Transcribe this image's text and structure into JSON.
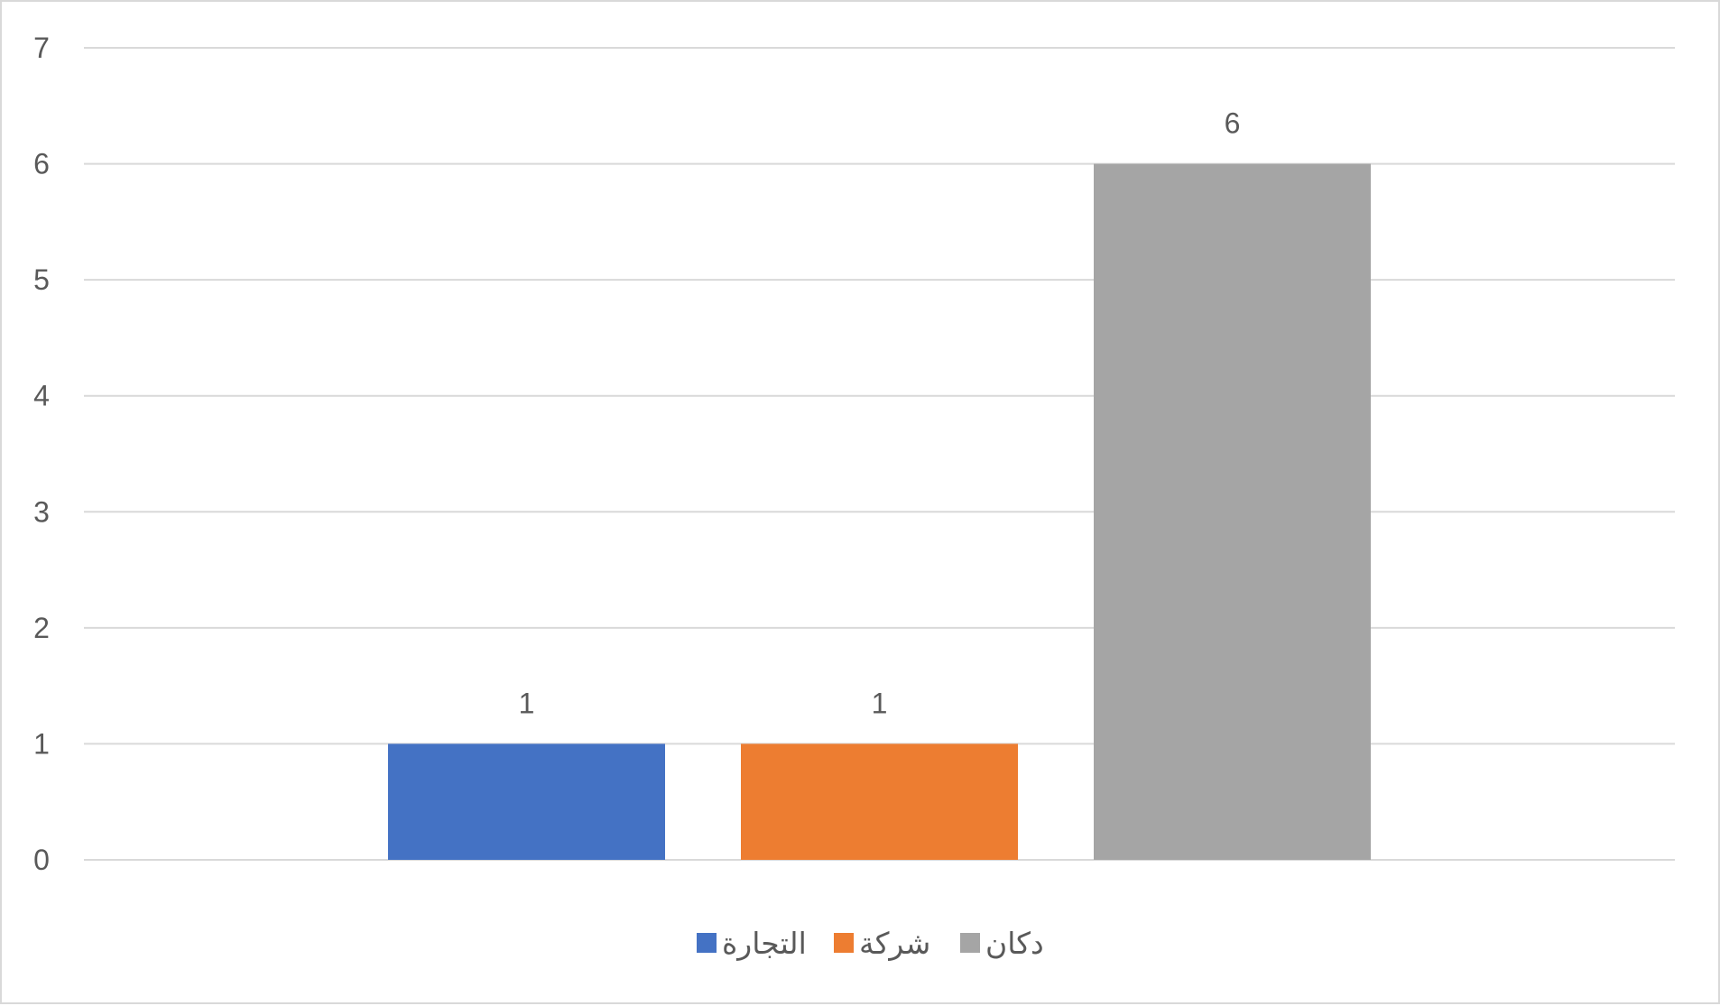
{
  "chart_data": {
    "type": "bar",
    "title": "",
    "xlabel": "",
    "ylabel": "",
    "ylim": [
      0,
      7
    ],
    "yticks": [
      "0",
      "1",
      "2",
      "3",
      "4",
      "5",
      "6",
      "7"
    ],
    "grid": true,
    "legend_placement": "bottom",
    "data_labels": true,
    "series": [
      {
        "name": "التجارة",
        "values": [
          1
        ],
        "color": "#4472C4"
      },
      {
        "name": "شركة",
        "values": [
          1
        ],
        "color": "#ED7D31"
      },
      {
        "name": "دكان",
        "values": [
          6
        ],
        "color": "#A5A5A5"
      }
    ]
  }
}
